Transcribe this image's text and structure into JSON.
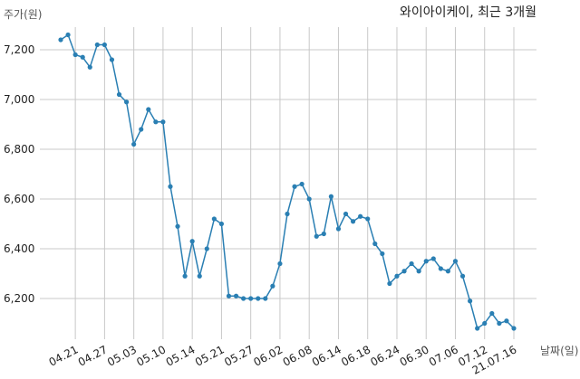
{
  "chart_data": {
    "type": "line",
    "title": "와이아이케이, 최근 3개월",
    "ylabel": "주가(원)",
    "xlabel": "날짜(일)",
    "ylim": [
      6060,
      7300
    ],
    "yticks": [
      6200,
      6400,
      6600,
      6800,
      7000,
      7200
    ],
    "ytick_labels": [
      "6,200",
      "6,400",
      "6,600",
      "6,800",
      "7,000",
      "7,200"
    ],
    "xtick_labels": [
      "04.21",
      "04.27",
      "05.03",
      "05.10",
      "05.14",
      "05.21",
      "05.27",
      "06.02",
      "06.08",
      "06.14",
      "06.18",
      "06.24",
      "06.30",
      "07.06",
      "07.12",
      "21.07.16"
    ],
    "xtick_index": [
      2,
      6,
      10,
      14,
      18,
      22,
      26,
      30,
      34,
      38,
      42,
      46,
      50,
      54,
      58,
      62
    ],
    "grid": true,
    "series": [
      {
        "color": "#2a7fb3",
        "values": [
          7240,
          7260,
          7180,
          7170,
          7130,
          7220,
          7220,
          7160,
          7020,
          6990,
          6820,
          6880,
          6960,
          6910,
          6910,
          6650,
          6490,
          6290,
          6430,
          6290,
          6400,
          6520,
          6500,
          6210,
          6210,
          6200,
          6200,
          6200,
          6200,
          6250,
          6340,
          6540,
          6650,
          6660,
          6600,
          6450,
          6460,
          6610,
          6480,
          6540,
          6510,
          6530,
          6520,
          6420,
          6380,
          6260,
          6290,
          6310,
          6340,
          6310,
          6350,
          6360,
          6320,
          6310,
          6350,
          6290,
          6190,
          6080,
          6100,
          6140,
          6100,
          6110,
          6080
        ]
      }
    ]
  }
}
